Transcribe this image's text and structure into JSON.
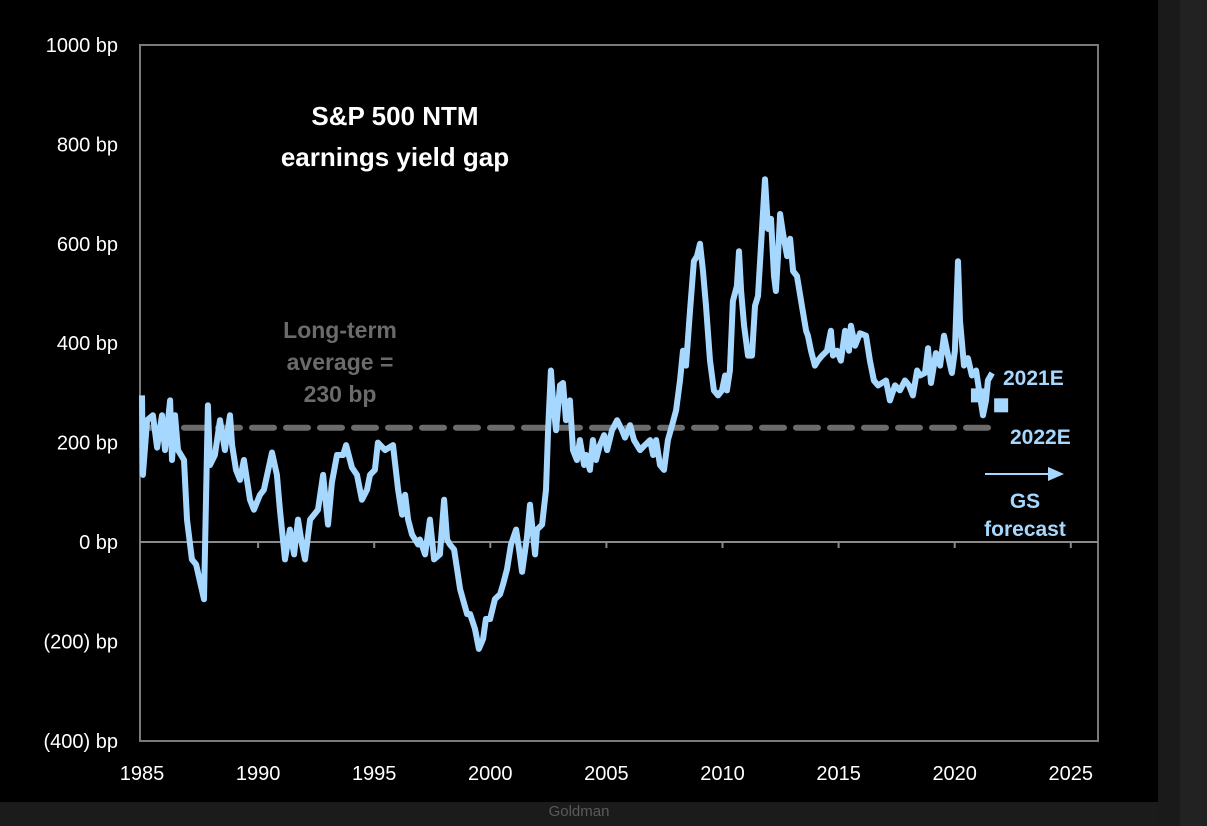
{
  "source": "Goldman",
  "chart_data": {
    "type": "line",
    "title": "S&P 500 NTM earnings yield gap",
    "title_lines": [
      "S&P 500 NTM",
      "earnings yield gap"
    ],
    "xlabel": "",
    "ylabel": "",
    "xlim": [
      1985,
      2025
    ],
    "ylim": [
      -400,
      1000
    ],
    "x_ticks": [
      "1985",
      "1990",
      "1995",
      "2000",
      "2005",
      "2010",
      "2015",
      "2020",
      "2025"
    ],
    "y_ticks": [
      {
        "value": 1000,
        "label": "1000 bp"
      },
      {
        "value": 800,
        "label": "800 bp"
      },
      {
        "value": 600,
        "label": "600 bp"
      },
      {
        "value": 400,
        "label": "400 bp"
      },
      {
        "value": 200,
        "label": "200 bp"
      },
      {
        "value": 0,
        "label": "0 bp"
      },
      {
        "value": -200,
        "label": "(200) bp"
      },
      {
        "value": -400,
        "label": "(400) bp"
      }
    ],
    "grid": false,
    "line_color": "#a6d8ff",
    "series": [
      {
        "x": [
          1985.0,
          1985.04,
          1985.22,
          1985.47,
          1985.65,
          1985.86,
          1985.99,
          1986.21,
          1986.29,
          1986.42,
          1986.55,
          1986.81,
          1986.94,
          1987.15,
          1987.33,
          1987.67,
          1987.84,
          1987.93,
          1988.14,
          1988.36,
          1988.57,
          1988.79,
          1988.88,
          1989.05,
          1989.22,
          1989.39,
          1989.65,
          1989.82,
          1990.08,
          1990.25,
          1990.6,
          1990.81,
          1990.94,
          1991.16,
          1991.37,
          1991.55,
          1991.72,
          1991.89,
          1992.02,
          1992.24,
          1992.58,
          1992.8,
          1993.01,
          1993.18,
          1993.4,
          1993.66,
          1993.79,
          1994.04,
          1994.26,
          1994.47,
          1994.69,
          1994.82,
          1995.03,
          1995.16,
          1995.47,
          1995.64,
          1995.81,
          1996.03,
          1996.2,
          1996.33,
          1996.46,
          1996.63,
          1996.89,
          1996.97,
          1997.19,
          1997.4,
          1997.58,
          1997.83,
          1998.01,
          1998.14,
          1998.26,
          1998.44,
          1998.7,
          1998.82,
          1999.0,
          1999.13,
          1999.34,
          1999.51,
          1999.69,
          1999.81,
          1999.99,
          2000.2,
          2000.42,
          2000.55,
          2000.72,
          2000.89,
          2001.11,
          2001.24,
          2001.37,
          2001.58,
          2001.71,
          2001.93,
          2002.01,
          2002.23,
          2002.4,
          2002.49,
          2002.61,
          2002.7,
          2002.83,
          2003.0,
          2003.13,
          2003.26,
          2003.43,
          2003.56,
          2003.73,
          2003.86,
          2004.04,
          2004.12,
          2004.29,
          2004.42,
          2004.55,
          2004.72,
          2004.9,
          2005.03,
          2005.24,
          2005.46,
          2005.67,
          2005.8,
          2006.02,
          2006.19,
          2006.45,
          2006.66,
          2006.88,
          2007.01,
          2007.14,
          2007.31,
          2007.48,
          2007.65,
          2007.83,
          2008.0,
          2008.17,
          2008.3,
          2008.43,
          2008.6,
          2008.77,
          2008.9,
          2009.03,
          2009.16,
          2009.29,
          2009.46,
          2009.63,
          2009.81,
          2009.98,
          2010.11,
          2010.19,
          2010.32,
          2010.45,
          2010.62,
          2010.71,
          2010.8,
          2010.93,
          2011.1,
          2011.27,
          2011.4,
          2011.53,
          2011.74,
          2011.83,
          2011.96,
          2012.09,
          2012.22,
          2012.3,
          2012.39,
          2012.48,
          2012.61,
          2012.78,
          2012.91,
          2013.04,
          2013.21,
          2013.42,
          2013.6,
          2013.68,
          2013.81,
          2013.98,
          2014.11,
          2014.29,
          2014.5,
          2014.67,
          2014.76,
          2014.93,
          2015.1,
          2015.28,
          2015.45,
          2015.53,
          2015.71,
          2015.92,
          2016.18,
          2016.35,
          2016.52,
          2016.7,
          2016.87,
          2017.04,
          2017.21,
          2017.43,
          2017.64,
          2017.86,
          2018.03,
          2018.2,
          2018.38,
          2018.51,
          2018.72,
          2018.85,
          2018.98,
          2019.19,
          2019.37,
          2019.54,
          2019.71,
          2019.88,
          2020.01,
          2020.14,
          2020.23,
          2020.4,
          2020.57,
          2020.74,
          2020.92,
          2021.05,
          2021.22,
          2021.35,
          2021.43,
          2021.61
        ],
        "y": [
          295,
          135,
          245,
          255,
          190,
          255,
          185,
          285,
          165,
          255,
          185,
          165,
          45,
          -35,
          -45,
          -115,
          275,
          155,
          175,
          245,
          185,
          255,
          195,
          145,
          125,
          165,
          85,
          65,
          95,
          105,
          180,
          135,
          65,
          -35,
          25,
          -25,
          45,
          -5,
          -35,
          45,
          65,
          135,
          35,
          120,
          175,
          175,
          195,
          150,
          135,
          85,
          105,
          135,
          145,
          200,
          185,
          190,
          195,
          105,
          55,
          95,
          45,
          15,
          -5,
          5,
          -25,
          45,
          -35,
          -25,
          85,
          5,
          -5,
          -15,
          -95,
          -115,
          -145,
          -145,
          -175,
          -215,
          -195,
          -155,
          -155,
          -115,
          -105,
          -85,
          -55,
          -5,
          25,
          -15,
          -60,
          10,
          75,
          -25,
          25,
          35,
          105,
          225,
          345,
          285,
          225,
          315,
          320,
          245,
          285,
          185,
          165,
          205,
          155,
          175,
          145,
          205,
          165,
          195,
          215,
          185,
          225,
          245,
          225,
          210,
          235,
          205,
          185,
          195,
          205,
          175,
          205,
          155,
          145,
          205,
          235,
          265,
          325,
          385,
          355,
          465,
          565,
          575,
          600,
          545,
          475,
          365,
          305,
          295,
          305,
          335,
          305,
          345,
          485,
          515,
          585,
          505,
          435,
          375,
          375,
          475,
          495,
          660,
          730,
          630,
          650,
          535,
          505,
          575,
          660,
          620,
          575,
          610,
          545,
          535,
          475,
          425,
          415,
          385,
          355,
          365,
          375,
          385,
          425,
          375,
          385,
          365,
          425,
          385,
          435,
          395,
          420,
          415,
          365,
          325,
          315,
          320,
          325,
          285,
          315,
          305,
          325,
          315,
          295,
          345,
          335,
          340,
          390,
          320,
          380,
          355,
          415,
          375,
          340,
          385,
          565,
          445,
          355,
          370,
          335,
          345,
          305,
          255,
          285,
          325,
          340
        ]
      }
    ],
    "reference_line": {
      "value": 230,
      "label_lines": [
        "Long-term",
        "average =",
        "230 bp"
      ],
      "color": "#6b6b6b",
      "style": "dashed"
    },
    "forecast_points": [
      {
        "x": 2021,
        "y": 295,
        "label": "2021E"
      },
      {
        "x": 2022,
        "y": 275,
        "label": "2022E"
      }
    ],
    "forecast_note_lines": [
      "GS",
      "forecast"
    ]
  }
}
